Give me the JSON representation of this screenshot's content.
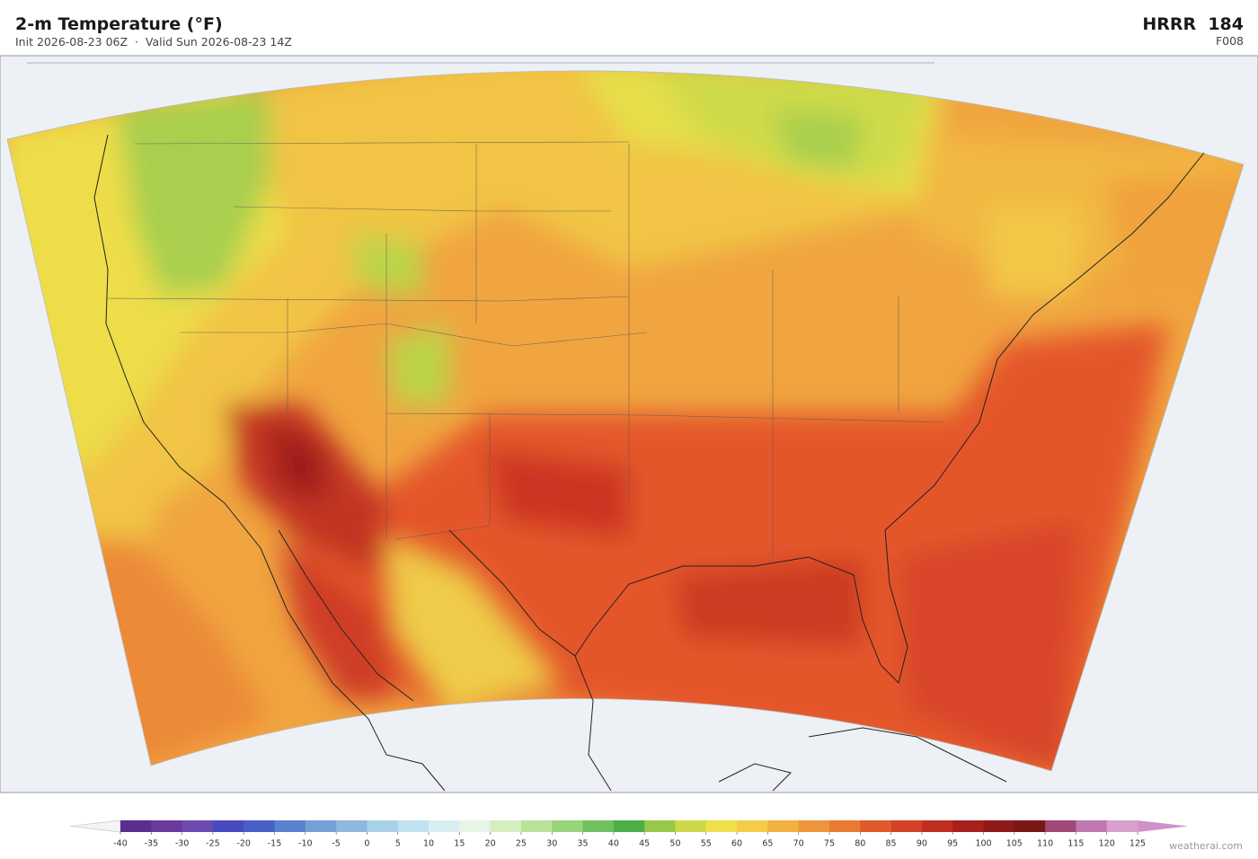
{
  "header": {
    "title": "2-m Temperature  (°F)",
    "subtitle": "Init 2026-08-23 06Z  ·  Valid Sun 2026-08-23 14Z",
    "model": "HRRR  184",
    "forecast_hour": "F008"
  },
  "colorbar": {
    "ticks": [
      -40,
      -35,
      -30,
      -25,
      -20,
      -15,
      -10,
      -5,
      0,
      5,
      10,
      15,
      20,
      25,
      30,
      35,
      40,
      45,
      50,
      55,
      60,
      65,
      70,
      75,
      80,
      85,
      90,
      95,
      100,
      105,
      110,
      115,
      120,
      125
    ],
    "colors": [
      "#5a2d91",
      "#6a3a9e",
      "#6b4bb0",
      "#4a4ac0",
      "#4a5ec8",
      "#5a82d0",
      "#74a0d8",
      "#8eb8e0",
      "#a8d0e8",
      "#c0e2ee",
      "#d8eef2",
      "#e6f5e6",
      "#d4eec0",
      "#bce29a",
      "#98d47a",
      "#70c060",
      "#4caf4a",
      "#98c84a",
      "#ccd84a",
      "#eee04a",
      "#f4cc48",
      "#f2b040",
      "#ee943a",
      "#e97a33",
      "#e05a2c",
      "#d44226",
      "#c02e22",
      "#a8201e",
      "#901a1a",
      "#7a1616",
      "#a04878",
      "#c078b0",
      "#d8a0cc"
    ],
    "under_color": "#f4f4f8",
    "over_color": "#d090c8"
  },
  "credit": "weatherai.com"
}
